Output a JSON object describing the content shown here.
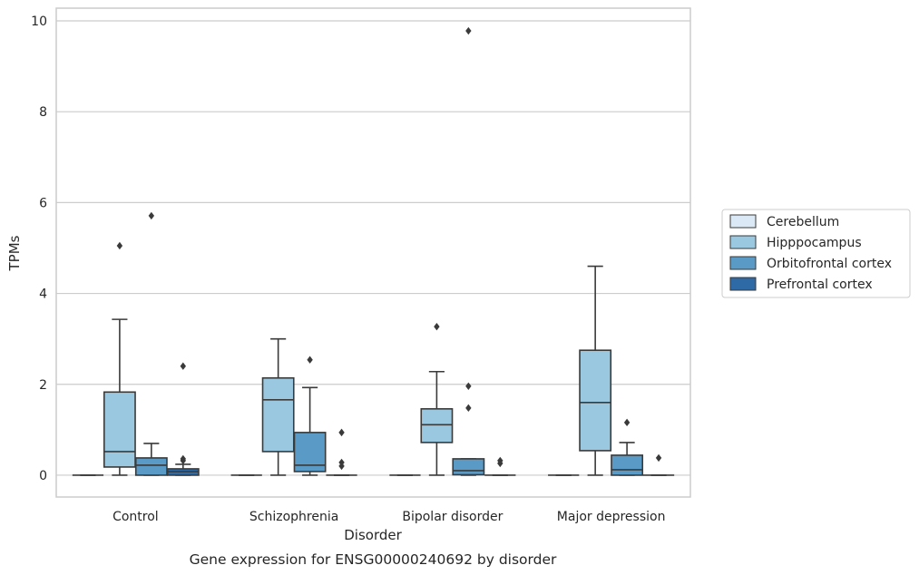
{
  "chart_data": {
    "type": "box",
    "xlabel": "Disorder",
    "ylabel": "TPMs",
    "caption": "Gene expression for ENSG00000240692 by disorder",
    "ylim": [
      -0.48,
      10.28
    ],
    "yticks": [
      0,
      2,
      4,
      6,
      8,
      10
    ],
    "grid": true,
    "legend_position": "right",
    "categories": [
      "Control",
      "Schizophrenia",
      "Bipolar disorder",
      "Major depression"
    ],
    "series": [
      {
        "name": "Cerebellum",
        "color": "#dbe9f6",
        "boxes": [
          {
            "q1": 0,
            "median": 0,
            "q3": 0,
            "whisker_low": 0,
            "whisker_high": 0,
            "outliers": []
          },
          {
            "q1": 0,
            "median": 0,
            "q3": 0,
            "whisker_low": 0,
            "whisker_high": 0,
            "outliers": []
          },
          {
            "q1": 0,
            "median": 0,
            "q3": 0,
            "whisker_low": 0,
            "whisker_high": 0,
            "outliers": []
          },
          {
            "q1": 0,
            "median": 0,
            "q3": 0,
            "whisker_low": 0,
            "whisker_high": 0,
            "outliers": []
          }
        ]
      },
      {
        "name": "Hipppocampus",
        "color": "#9ac8e0",
        "boxes": [
          {
            "q1": 0.18,
            "median": 0.52,
            "q3": 1.83,
            "whisker_low": 0,
            "whisker_high": 3.43,
            "outliers": [
              5.05
            ]
          },
          {
            "q1": 0.52,
            "median": 1.66,
            "q3": 2.14,
            "whisker_low": 0,
            "whisker_high": 3.0,
            "outliers": []
          },
          {
            "q1": 0.72,
            "median": 1.11,
            "q3": 1.46,
            "whisker_low": 0,
            "whisker_high": 2.28,
            "outliers": [
              3.27
            ]
          },
          {
            "q1": 0.54,
            "median": 1.6,
            "q3": 2.75,
            "whisker_low": 0,
            "whisker_high": 4.6,
            "outliers": []
          }
        ]
      },
      {
        "name": "Orbitofrontal cortex",
        "color": "#5a9ac6",
        "boxes": [
          {
            "q1": 0,
            "median": 0.22,
            "q3": 0.38,
            "whisker_low": 0,
            "whisker_high": 0.7,
            "outliers": [
              5.71
            ]
          },
          {
            "q1": 0.08,
            "median": 0.22,
            "q3": 0.94,
            "whisker_low": 0,
            "whisker_high": 1.93,
            "outliers": [
              2.54
            ]
          },
          {
            "q1": 0.01,
            "median": 0.1,
            "q3": 0.36,
            "whisker_low": 0,
            "whisker_high": 0.36,
            "outliers": [
              9.78,
              1.96,
              1.48
            ]
          },
          {
            "q1": 0,
            "median": 0.12,
            "q3": 0.44,
            "whisker_low": 0,
            "whisker_high": 0.72,
            "outliers": [
              1.16
            ]
          }
        ]
      },
      {
        "name": "Prefrontal cortex",
        "color": "#2d6aa6",
        "boxes": [
          {
            "q1": 0,
            "median": 0.08,
            "q3": 0.14,
            "whisker_low": 0,
            "whisker_high": 0.24,
            "outliers": [
              2.4,
              0.36,
              0.32
            ]
          },
          {
            "q1": 0,
            "median": 0,
            "q3": 0,
            "whisker_low": 0,
            "whisker_high": 0,
            "outliers": [
              0.94,
              0.28,
              0.2
            ]
          },
          {
            "q1": 0,
            "median": 0,
            "q3": 0,
            "whisker_low": 0,
            "whisker_high": 0,
            "outliers": [
              0.32,
              0.26
            ]
          },
          {
            "q1": 0,
            "median": 0,
            "q3": 0,
            "whisker_low": 0,
            "whisker_high": 0,
            "outliers": [
              0.38
            ]
          }
        ]
      }
    ]
  }
}
